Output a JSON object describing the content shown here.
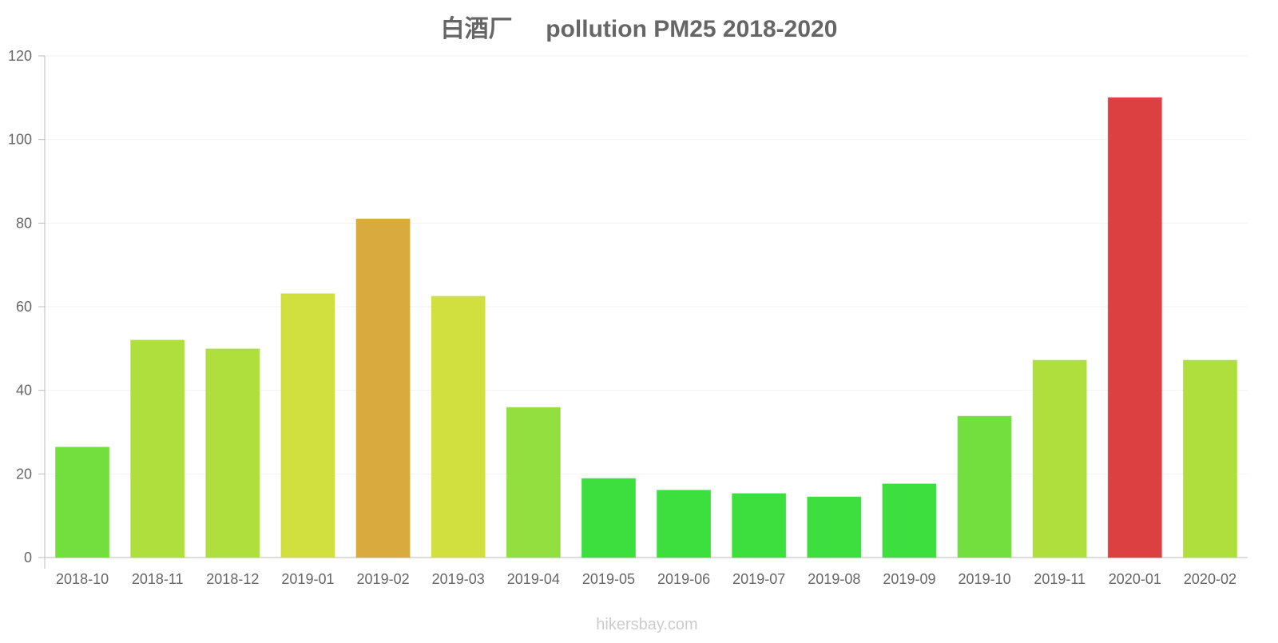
{
  "chart_data": {
    "type": "bar",
    "title": "白酒厂     pollution PM25 2018-2020",
    "xlabel": "",
    "ylabel": "",
    "ylim": [
      0,
      120
    ],
    "yticks": [
      0,
      20,
      40,
      60,
      80,
      100,
      120
    ],
    "grid": true,
    "categories": [
      "2018-10",
      "2018-11",
      "2018-12",
      "2019-01",
      "2019-02",
      "2019-03",
      "2019-04",
      "2019-05",
      "2019-06",
      "2019-07",
      "2019-08",
      "2019-09",
      "2019-10",
      "2019-11",
      "2020-01",
      "2020-02"
    ],
    "values": [
      26.4,
      52,
      49.9,
      63.1,
      81,
      62.5,
      35.9,
      18.9,
      16.1,
      15.3,
      14.5,
      17.6,
      33.8,
      47.2,
      110,
      47.2
    ],
    "colors": [
      "#6cdd35",
      "#aadd33",
      "#aadd33",
      "#cfdd35",
      "#d7a533",
      "#cfdd35",
      "#8cdd35",
      "#33dd35",
      "#33dd35",
      "#33dd35",
      "#33dd35",
      "#33dd35",
      "#6cdd35",
      "#aadd33",
      "#db3636",
      "#aadd33"
    ]
  },
  "watermark": "hikersbay.com"
}
